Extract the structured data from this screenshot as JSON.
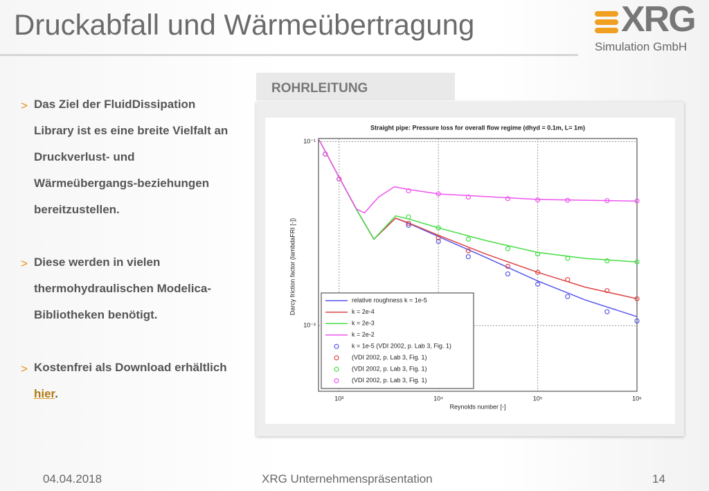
{
  "header": {
    "title": "Druckabfall und Wärmeübertragung",
    "logo": "XRG",
    "logo_sub": "Simulation GmbH"
  },
  "tab": "ROHRLEITUNG",
  "bullets": [
    {
      "text": "Das Ziel der FluidDissipation Library ist es eine breite Vielfalt an Druckverlust- und Wärmeübergangs-beziehungen bereitzustellen."
    },
    {
      "text": "Diese werden in vielen thermohydraulischen Modelica-Bibliotheken benötigt."
    },
    {
      "text": "Kostenfrei als Download erhältlich ",
      "link": "hier",
      "after": "."
    }
  ],
  "footer": {
    "date": "04.04.2018",
    "center": "XRG Unternehmenspräsentation",
    "page": "14"
  },
  "chart_data": {
    "type": "line",
    "title": "Straight pipe: Pressure loss for overall flow regime (dhyd = 0.1m, L= 1m)",
    "x_label": "Reynolds number [-]",
    "y_label": "Darcy friction factor (lambdaFRI [-])",
    "xlog": true,
    "ylog": true,
    "grid": true,
    "legend": "lower-left",
    "xlim": [
      620,
      1000000
    ],
    "ylim": [
      0.0044,
      0.104
    ],
    "xticks": [
      {
        "value": 1000,
        "label": "10³"
      },
      {
        "value": 10000,
        "label": "10⁴"
      },
      {
        "value": 100000,
        "label": "10⁵"
      },
      {
        "value": 1000000,
        "label": "10⁶"
      }
    ],
    "yticks": [
      {
        "value": 0.01,
        "label": "10⁻²"
      },
      {
        "value": 0.1,
        "label": "10⁻¹"
      }
    ],
    "series": [
      {
        "name": "relative roughness k = 1e-5",
        "color": "#5555ee",
        "mode": "line",
        "x": [
          630,
          1000,
          1500,
          2240,
          3700,
          5000,
          10000,
          30000,
          100000,
          300000,
          1000000
        ],
        "values": [
          0.102,
          0.064,
          0.0427,
          0.0295,
          0.0384,
          0.036,
          0.0305,
          0.0235,
          0.0175,
          0.0138,
          0.0112
        ]
      },
      {
        "name": "k = 2e-4",
        "color": "#dd4444",
        "mode": "line",
        "x": [
          630,
          1000,
          1500,
          2240,
          3700,
          5000,
          10000,
          30000,
          100000,
          300000,
          1000000
        ],
        "values": [
          0.102,
          0.064,
          0.0427,
          0.0295,
          0.0384,
          0.0362,
          0.031,
          0.0245,
          0.0195,
          0.0162,
          0.014
        ]
      },
      {
        "name": "k = 2e-3",
        "color": "#44dd44",
        "mode": "line",
        "x": [
          630,
          1000,
          1500,
          2240,
          3700,
          5000,
          10000,
          30000,
          100000,
          300000,
          1000000
        ],
        "values": [
          0.102,
          0.064,
          0.0427,
          0.0295,
          0.0395,
          0.038,
          0.034,
          0.029,
          0.025,
          0.0232,
          0.0222
        ]
      },
      {
        "name": "k = 2e-2",
        "color": "#ee55ee",
        "mode": "line",
        "x": [
          630,
          1000,
          1500,
          1800,
          2500,
          3600,
          5000,
          10000,
          100000,
          1000000
        ],
        "values": [
          0.102,
          0.064,
          0.043,
          0.041,
          0.05,
          0.0568,
          0.055,
          0.052,
          0.0485,
          0.0475
        ]
      },
      {
        "name": "k = 1e-5 (VDI 2002, p. Lab 3, Fig. 1)",
        "color": "#5555ee",
        "mode": "markers",
        "x": [
          725,
          1000,
          5000,
          10000,
          20000,
          50000,
          100000,
          200000,
          500000,
          1000000
        ],
        "values": [
          0.0856,
          0.0627,
          0.0351,
          0.0287,
          0.0237,
          0.0191,
          0.0168,
          0.0144,
          0.0119,
          0.0106
        ]
      },
      {
        "name": "(VDI 2002, p. Lab 3, Fig. 1)",
        "color": "#dd4444",
        "mode": "markers",
        "x": [
          725,
          1000,
          5000,
          10000,
          20000,
          50000,
          100000,
          200000,
          500000,
          1000000
        ],
        "values": [
          0.0856,
          0.0627,
          0.036,
          0.03,
          0.0255,
          0.021,
          0.0195,
          0.0178,
          0.0155,
          0.014
        ]
      },
      {
        "name": "(VDI 2002, p. Lab 3, Fig. 1)",
        "color": "#44dd44",
        "mode": "markers",
        "x": [
          725,
          1000,
          5000,
          10000,
          20000,
          50000,
          100000,
          200000,
          500000,
          1000000
        ],
        "values": [
          0.0856,
          0.0627,
          0.039,
          0.034,
          0.0295,
          0.0262,
          0.0245,
          0.0232,
          0.0225,
          0.0222
        ]
      },
      {
        "name": "(VDI 2002, p. Lab 3, Fig. 1)",
        "color": "#ee55ee",
        "mode": "markers",
        "x": [
          725,
          1000,
          5000,
          10000,
          20000,
          50000,
          100000,
          200000,
          500000,
          1000000
        ],
        "values": [
          0.0856,
          0.0627,
          0.054,
          0.052,
          0.05,
          0.049,
          0.0482,
          0.048,
          0.0478,
          0.0476
        ]
      }
    ]
  }
}
